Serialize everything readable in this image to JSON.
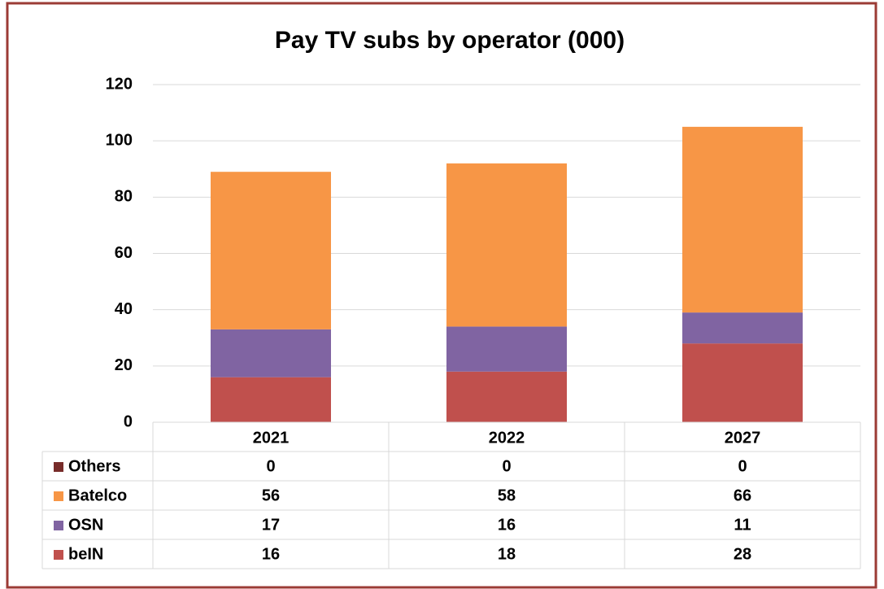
{
  "chart_data": {
    "type": "bar",
    "stacked": true,
    "title": "Pay TV subs by operator (000)",
    "categories": [
      "2021",
      "2022",
      "2027"
    ],
    "series": [
      {
        "name": "beIN",
        "color": "#c0504d",
        "values": [
          16,
          18,
          28
        ]
      },
      {
        "name": "OSN",
        "color": "#8064a2",
        "values": [
          17,
          16,
          11
        ]
      },
      {
        "name": "Batelco",
        "color": "#f79646",
        "values": [
          56,
          58,
          66
        ]
      },
      {
        "name": "Others",
        "color": "#772c2a",
        "values": [
          0,
          0,
          0
        ]
      }
    ],
    "ylim": [
      0,
      120
    ],
    "yticks": [
      0,
      20,
      40,
      60,
      80,
      100,
      120
    ],
    "grid": true,
    "data_table": true
  }
}
